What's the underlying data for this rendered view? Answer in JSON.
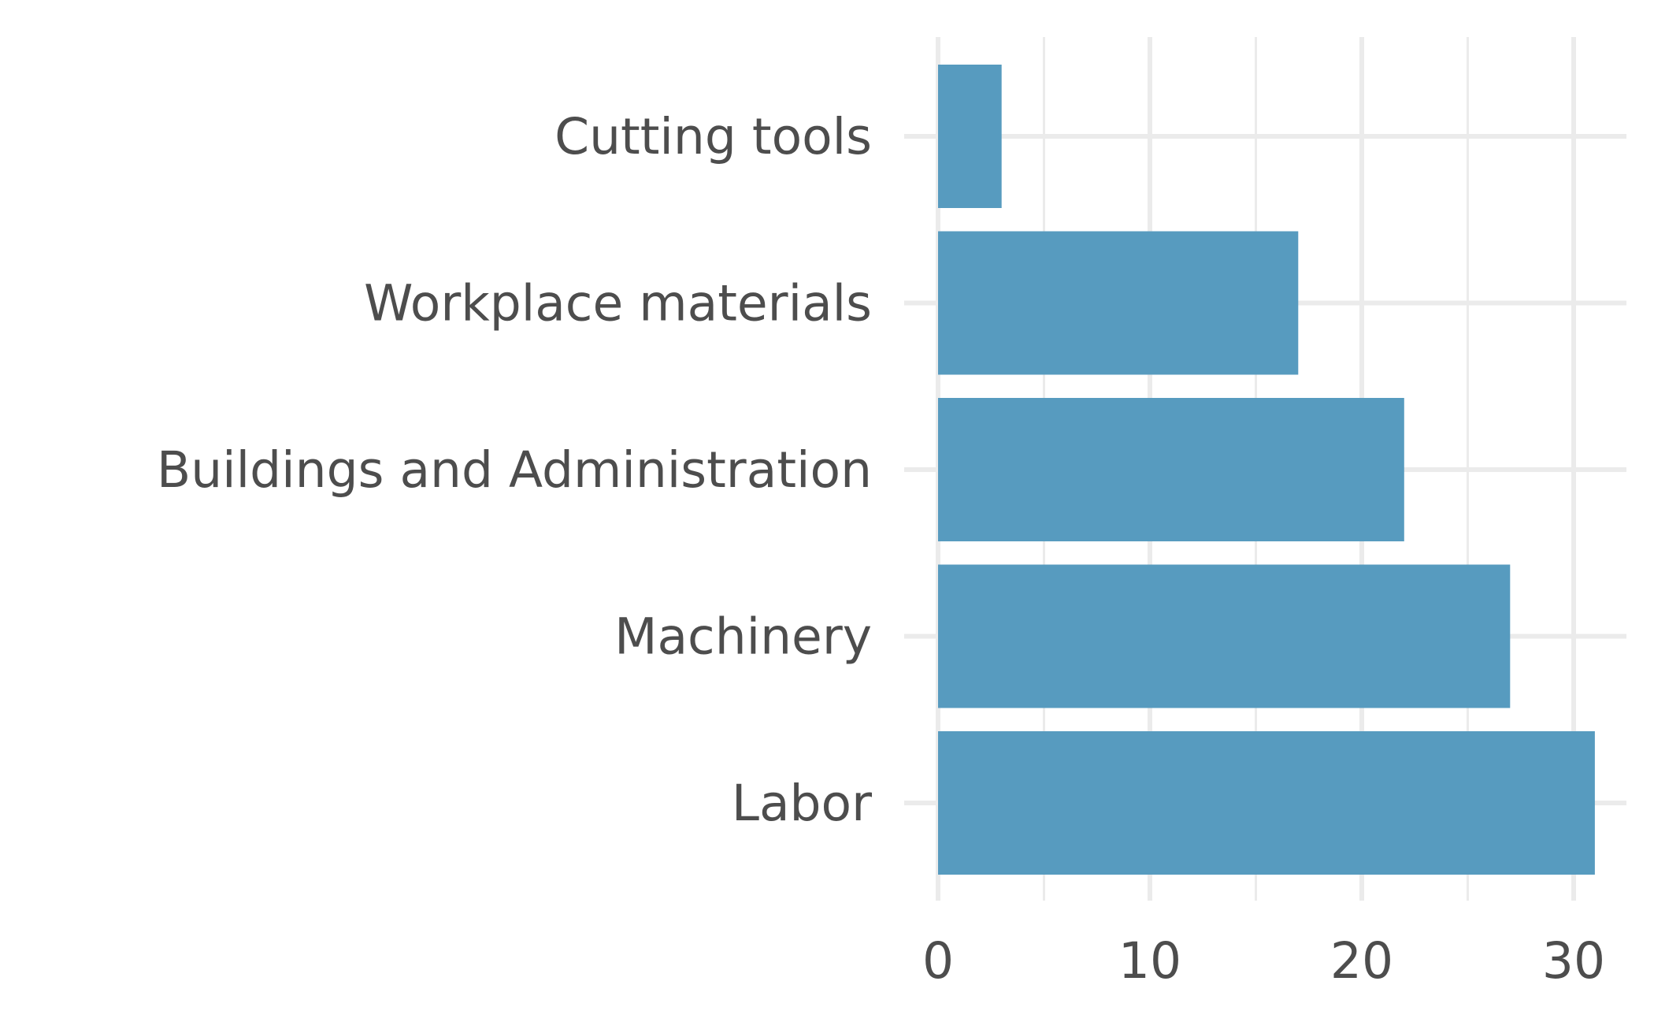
{
  "chart_data": {
    "type": "bar",
    "orientation": "horizontal",
    "categories": [
      "Cutting tools",
      "Workplace materials",
      "Buildings and Administration",
      "Machinery",
      "Labor"
    ],
    "values": [
      3,
      17,
      22,
      27,
      31
    ],
    "xlim": [
      0,
      32.5
    ],
    "xticks": [
      0,
      10,
      20,
      30
    ],
    "x_tick_labels": [
      "0",
      "10",
      "20",
      "30"
    ],
    "title": "",
    "xlabel": "",
    "ylabel": "",
    "grid": true,
    "legend": "none",
    "bar_color": "#579bbf"
  }
}
